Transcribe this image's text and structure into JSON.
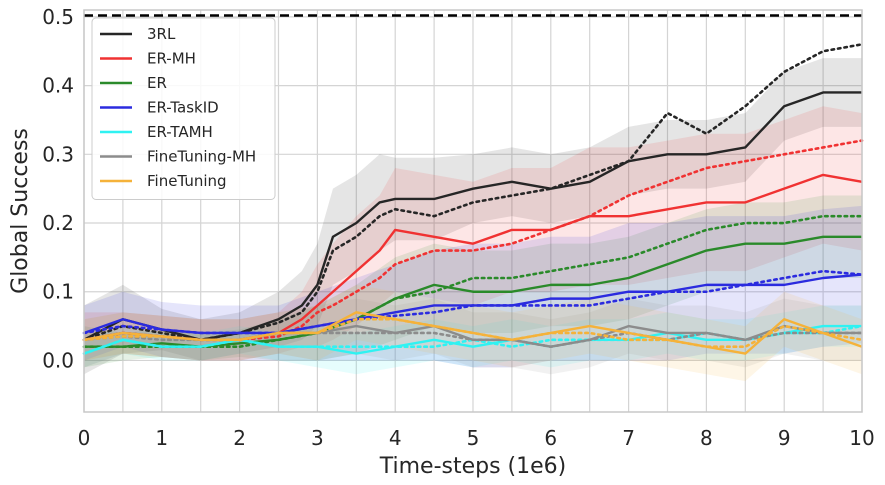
{
  "chart_data": {
    "type": "line",
    "xlabel": "Time-steps (1e6)",
    "ylabel": "Global Success",
    "xlim": [
      0,
      10
    ],
    "ylim": [
      -0.075,
      0.51
    ],
    "xticks": [
      "0",
      "1",
      "2",
      "3",
      "4",
      "5",
      "6",
      "7",
      "8",
      "9",
      "10"
    ],
    "yticks": [
      "0.0",
      "0.1",
      "0.2",
      "0.3",
      "0.4",
      "0.5"
    ],
    "grid": true,
    "legend_position": "top-left",
    "reference_line": {
      "y": 0.502,
      "style": "dashed",
      "color": "#000000"
    },
    "styles": {
      "solid": "mean",
      "dotted": "alternate evaluation",
      "band": "variation"
    },
    "series": [
      {
        "name": "3RL",
        "color": "#262626",
        "x": [
          0,
          0.5,
          1,
          1.5,
          2,
          2.5,
          2.8,
          3,
          3.2,
          3.5,
          3.8,
          4,
          4.5,
          5,
          5.5,
          6,
          6.5,
          7,
          7.5,
          8,
          8.5,
          9,
          9.5,
          10
        ],
        "values": [
          0.03,
          0.06,
          0.045,
          0.03,
          0.04,
          0.06,
          0.08,
          0.11,
          0.18,
          0.2,
          0.23,
          0.235,
          0.235,
          0.25,
          0.26,
          0.25,
          0.26,
          0.29,
          0.3,
          0.3,
          0.31,
          0.37,
          0.39,
          0.39
        ],
        "dotted_values": [
          0.03,
          0.05,
          0.04,
          0.03,
          0.04,
          0.055,
          0.07,
          0.1,
          0.16,
          0.18,
          0.21,
          0.22,
          0.21,
          0.23,
          0.24,
          0.25,
          0.27,
          0.29,
          0.36,
          0.33,
          0.37,
          0.42,
          0.45,
          0.46
        ],
        "band": [
          0.05,
          0.05,
          0.03,
          0.03,
          0.03,
          0.04,
          0.05,
          0.06,
          0.07,
          0.07,
          0.07,
          0.06,
          0.06,
          0.05,
          0.05,
          0.05,
          0.05,
          0.05,
          0.05,
          0.05,
          0.05,
          0.05,
          0.05,
          0.05
        ]
      },
      {
        "name": "ER-MH",
        "color": "#f03232",
        "x": [
          0,
          0.5,
          1,
          1.5,
          2,
          2.5,
          2.8,
          3,
          3.2,
          3.5,
          3.8,
          4,
          4.5,
          5,
          5.5,
          6,
          6.5,
          7,
          7.5,
          8,
          8.5,
          9,
          9.5,
          10
        ],
        "values": [
          0.03,
          0.04,
          0.035,
          0.03,
          0.03,
          0.04,
          0.06,
          0.08,
          0.1,
          0.13,
          0.16,
          0.19,
          0.18,
          0.17,
          0.19,
          0.19,
          0.21,
          0.21,
          0.22,
          0.23,
          0.23,
          0.25,
          0.27,
          0.26
        ],
        "dotted_values": [
          0.03,
          0.04,
          0.035,
          0.03,
          0.03,
          0.035,
          0.05,
          0.07,
          0.08,
          0.1,
          0.12,
          0.14,
          0.16,
          0.16,
          0.17,
          0.19,
          0.21,
          0.24,
          0.26,
          0.28,
          0.29,
          0.3,
          0.31,
          0.32
        ],
        "band": [
          0.04,
          0.03,
          0.03,
          0.03,
          0.03,
          0.03,
          0.04,
          0.06,
          0.07,
          0.08,
          0.08,
          0.09,
          0.09,
          0.09,
          0.09,
          0.09,
          0.1,
          0.1,
          0.1,
          0.1,
          0.1,
          0.1,
          0.1,
          0.1
        ]
      },
      {
        "name": "ER",
        "color": "#2a8a2a",
        "x": [
          0,
          0.5,
          1,
          1.5,
          2,
          2.5,
          3,
          3.5,
          4,
          4.5,
          5,
          5.5,
          6,
          6.5,
          7,
          7.5,
          8,
          8.5,
          9,
          9.5,
          10
        ],
        "values": [
          0.02,
          0.02,
          0.025,
          0.02,
          0.025,
          0.03,
          0.04,
          0.06,
          0.09,
          0.11,
          0.1,
          0.1,
          0.11,
          0.11,
          0.12,
          0.14,
          0.16,
          0.17,
          0.17,
          0.18,
          0.18
        ],
        "dotted_values": [
          0.02,
          0.02,
          0.02,
          0.02,
          0.02,
          0.03,
          0.04,
          0.06,
          0.09,
          0.1,
          0.12,
          0.12,
          0.13,
          0.14,
          0.15,
          0.17,
          0.19,
          0.2,
          0.2,
          0.21,
          0.21
        ],
        "band": [
          0.03,
          0.02,
          0.02,
          0.02,
          0.02,
          0.03,
          0.04,
          0.05,
          0.06,
          0.06,
          0.06,
          0.06,
          0.06,
          0.06,
          0.06,
          0.06,
          0.06,
          0.06,
          0.06,
          0.06,
          0.06
        ]
      },
      {
        "name": "ER-TaskID",
        "color": "#2b2bdf",
        "x": [
          0,
          0.5,
          1,
          1.5,
          2,
          2.5,
          3,
          3.5,
          4,
          4.5,
          5,
          5.5,
          6,
          6.5,
          7,
          7.5,
          8,
          8.5,
          9,
          9.5,
          10
        ],
        "values": [
          0.04,
          0.06,
          0.045,
          0.04,
          0.04,
          0.04,
          0.05,
          0.06,
          0.07,
          0.08,
          0.08,
          0.08,
          0.09,
          0.09,
          0.1,
          0.1,
          0.11,
          0.11,
          0.11,
          0.12,
          0.125
        ],
        "dotted_values": [
          0.04,
          0.05,
          0.045,
          0.04,
          0.04,
          0.04,
          0.05,
          0.06,
          0.065,
          0.07,
          0.08,
          0.08,
          0.08,
          0.08,
          0.09,
          0.1,
          0.1,
          0.11,
          0.12,
          0.13,
          0.125
        ],
        "band": [
          0.04,
          0.04,
          0.04,
          0.04,
          0.04,
          0.04,
          0.05,
          0.06,
          0.07,
          0.08,
          0.09,
          0.09,
          0.09,
          0.09,
          0.1,
          0.1,
          0.1,
          0.1,
          0.1,
          0.1,
          0.1
        ]
      },
      {
        "name": "ER-TAMH",
        "color": "#2ff2f2",
        "x": [
          0,
          0.5,
          1,
          1.5,
          2,
          2.5,
          3,
          3.5,
          4,
          4.5,
          5,
          5.5,
          6,
          6.5,
          7,
          7.5,
          8,
          8.5,
          9,
          9.5,
          10
        ],
        "values": [
          0.01,
          0.03,
          0.02,
          0.02,
          0.03,
          0.02,
          0.02,
          0.01,
          0.02,
          0.03,
          0.02,
          0.03,
          0.02,
          0.03,
          0.03,
          0.04,
          0.03,
          0.03,
          0.04,
          0.05,
          0.05
        ],
        "dotted_values": [
          0.01,
          0.03,
          0.02,
          0.02,
          0.03,
          0.02,
          0.02,
          0.02,
          0.02,
          0.02,
          0.03,
          0.02,
          0.03,
          0.03,
          0.03,
          0.03,
          0.04,
          0.03,
          0.04,
          0.04,
          0.05
        ],
        "band": [
          0.02,
          0.02,
          0.02,
          0.02,
          0.02,
          0.02,
          0.03,
          0.03,
          0.03,
          0.03,
          0.03,
          0.03,
          0.03,
          0.03,
          0.03,
          0.03,
          0.03,
          0.03,
          0.03,
          0.03,
          0.03
        ]
      },
      {
        "name": "FineTuning-MH",
        "color": "#8c8c8c",
        "x": [
          0,
          0.5,
          1,
          1.5,
          2,
          2.5,
          3,
          3.5,
          4,
          4.5,
          5,
          5.5,
          6,
          6.5,
          7,
          7.5,
          8,
          8.5,
          9,
          9.5,
          10
        ],
        "values": [
          0.03,
          0.04,
          0.035,
          0.03,
          0.03,
          0.04,
          0.04,
          0.05,
          0.04,
          0.05,
          0.03,
          0.03,
          0.02,
          0.03,
          0.05,
          0.04,
          0.04,
          0.03,
          0.05,
          0.04,
          0.04
        ],
        "dotted_values": [
          0.03,
          0.035,
          0.03,
          0.03,
          0.03,
          0.04,
          0.04,
          0.04,
          0.04,
          0.04,
          0.03,
          0.03,
          0.02,
          0.03,
          0.04,
          0.03,
          0.04,
          0.03,
          0.04,
          0.04,
          0.04
        ],
        "band": [
          0.03,
          0.03,
          0.03,
          0.03,
          0.03,
          0.03,
          0.04,
          0.04,
          0.04,
          0.04,
          0.04,
          0.04,
          0.04,
          0.04,
          0.04,
          0.04,
          0.04,
          0.04,
          0.04,
          0.04,
          0.04
        ]
      },
      {
        "name": "FineTuning",
        "color": "#f5b23a",
        "x": [
          0,
          0.5,
          1,
          1.5,
          2,
          2.5,
          3,
          3.5,
          4,
          4.5,
          5,
          5.5,
          6,
          6.5,
          7,
          7.5,
          8,
          8.5,
          9,
          9.5,
          10
        ],
        "values": [
          0.03,
          0.04,
          0.035,
          0.03,
          0.03,
          0.04,
          0.04,
          0.07,
          0.06,
          0.05,
          0.04,
          0.03,
          0.04,
          0.05,
          0.04,
          0.03,
          0.02,
          0.01,
          0.06,
          0.04,
          0.02
        ],
        "dotted_values": [
          0.03,
          0.035,
          0.035,
          0.03,
          0.03,
          0.04,
          0.04,
          0.06,
          0.06,
          0.05,
          0.04,
          0.03,
          0.04,
          0.04,
          0.03,
          0.03,
          0.02,
          0.02,
          0.05,
          0.04,
          0.03
        ],
        "band": [
          0.03,
          0.03,
          0.03,
          0.03,
          0.03,
          0.03,
          0.04,
          0.04,
          0.04,
          0.04,
          0.04,
          0.04,
          0.04,
          0.04,
          0.04,
          0.04,
          0.04,
          0.04,
          0.04,
          0.04,
          0.04
        ]
      }
    ]
  }
}
